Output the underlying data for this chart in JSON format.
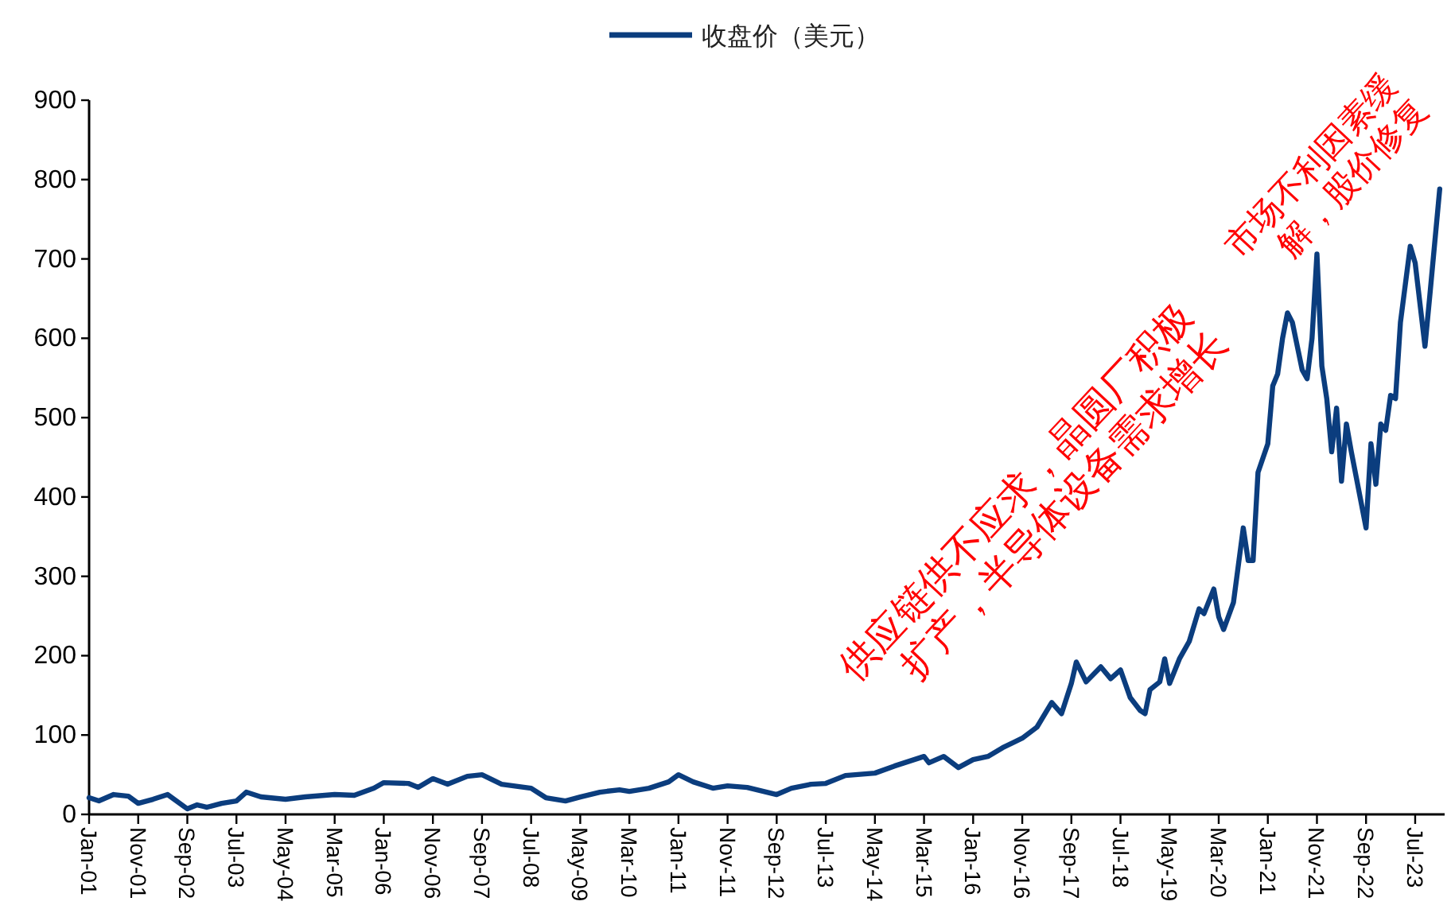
{
  "chart_data": {
    "type": "line",
    "legend": "top",
    "xlim": [
      "2001-01",
      "2024-01"
    ],
    "xticks": [
      {
        "value": "2001-01",
        "label": "Jan-01"
      },
      {
        "value": "2001-11",
        "label": "Nov-01"
      },
      {
        "value": "2002-09",
        "label": "Sep-02"
      },
      {
        "value": "2003-07",
        "label": "Jul-03"
      },
      {
        "value": "2004-05",
        "label": "May-04"
      },
      {
        "value": "2005-03",
        "label": "Mar-05"
      },
      {
        "value": "2006-01",
        "label": "Jan-06"
      },
      {
        "value": "2006-11",
        "label": "Nov-06"
      },
      {
        "value": "2007-09",
        "label": "Sep-07"
      },
      {
        "value": "2008-07",
        "label": "Jul-08"
      },
      {
        "value": "2009-05",
        "label": "May-09"
      },
      {
        "value": "2010-03",
        "label": "Mar-10"
      },
      {
        "value": "2011-01",
        "label": "Jan-11"
      },
      {
        "value": "2011-11",
        "label": "Nov-11"
      },
      {
        "value": "2012-09",
        "label": "Sep-12"
      },
      {
        "value": "2013-07",
        "label": "Jul-13"
      },
      {
        "value": "2014-05",
        "label": "May-14"
      },
      {
        "value": "2015-03",
        "label": "Mar-15"
      },
      {
        "value": "2016-01",
        "label": "Jan-16"
      },
      {
        "value": "2016-11",
        "label": "Nov-16"
      },
      {
        "value": "2017-09",
        "label": "Sep-17"
      },
      {
        "value": "2018-07",
        "label": "Jul-18"
      },
      {
        "value": "2019-05",
        "label": "May-19"
      },
      {
        "value": "2020-03",
        "label": "Mar-20"
      },
      {
        "value": "2021-01",
        "label": "Jan-21"
      },
      {
        "value": "2021-11",
        "label": "Nov-21"
      },
      {
        "value": "2022-09",
        "label": "Sep-22"
      },
      {
        "value": "2023-07",
        "label": "Jul-23"
      }
    ],
    "ylim": [
      0,
      900
    ],
    "yticks": [
      0,
      100,
      200,
      300,
      400,
      500,
      600,
      700,
      800,
      900
    ],
    "annotations": [
      "供应链供不应求，晶圆厂积极扩产，半导体设备需求增长",
      "市场不利因素缓解，股价修复"
    ],
    "series": [
      {
        "name": "收盘价（美元）",
        "color": "#0b3d7e",
        "x": [
          "2001-01",
          "2001-03",
          "2001-06",
          "2001-09",
          "2001-11",
          "2002-02",
          "2002-05",
          "2002-09",
          "2002-11",
          "2003-01",
          "2003-04",
          "2003-07",
          "2003-09",
          "2003-12",
          "2004-05",
          "2004-09",
          "2005-03",
          "2005-07",
          "2005-11",
          "2006-01",
          "2006-06",
          "2006-08",
          "2006-11",
          "2007-02",
          "2007-06",
          "2007-09",
          "2008-01",
          "2008-07",
          "2008-10",
          "2009-02",
          "2009-05",
          "2009-09",
          "2010-01",
          "2010-03",
          "2010-07",
          "2010-11",
          "2011-01",
          "2011-04",
          "2011-08",
          "2011-11",
          "2012-03",
          "2012-09",
          "2012-12",
          "2013-04",
          "2013-07",
          "2013-11",
          "2014-05",
          "2014-09",
          "2015-01",
          "2015-03",
          "2015-04",
          "2015-07",
          "2015-10",
          "2016-01",
          "2016-04",
          "2016-07",
          "2016-11",
          "2017-02",
          "2017-05",
          "2017-07",
          "2017-09",
          "2017-10",
          "2017-12",
          "2018-03",
          "2018-05",
          "2018-07",
          "2018-09",
          "2018-11",
          "2018-12",
          "2019-01",
          "2019-03",
          "2019-04",
          "2019-05",
          "2019-07",
          "2019-09",
          "2019-11",
          "2019-12",
          "2020-02",
          "2020-03",
          "2020-04",
          "2020-06",
          "2020-08",
          "2020-09",
          "2020-10",
          "2020-11",
          "2021-01",
          "2021-02",
          "2021-03",
          "2021-04",
          "2021-05",
          "2021-06",
          "2021-07",
          "2021-08",
          "2021-09",
          "2021-10",
          "2021-11",
          "2021-12",
          "2022-01",
          "2022-02",
          "2022-03",
          "2022-04",
          "2022-05",
          "2022-06",
          "2022-09",
          "2022-10",
          "2022-11",
          "2022-12",
          "2023-01",
          "2023-02",
          "2023-03",
          "2023-04",
          "2023-06",
          "2023-07",
          "2023-09",
          "2023-10",
          "2023-12"
        ],
        "values": [
          21,
          17,
          25,
          23,
          14,
          19,
          25,
          7,
          12,
          9,
          14,
          17,
          28,
          22,
          19,
          22,
          25,
          24,
          33,
          40,
          39,
          34,
          45,
          38,
          48,
          50,
          38,
          33,
          21,
          17,
          22,
          28,
          31,
          29,
          33,
          41,
          50,
          41,
          33,
          36,
          34,
          25,
          33,
          38,
          39,
          49,
          52,
          61,
          69,
          73,
          65,
          73,
          59,
          69,
          73,
          84,
          96,
          110,
          141,
          127,
          165,
          192,
          167,
          186,
          171,
          182,
          147,
          131,
          127,
          157,
          167,
          196,
          165,
          196,
          218,
          259,
          253,
          284,
          249,
          233,
          267,
          361,
          320,
          320,
          431,
          467,
          540,
          555,
          600,
          632,
          620,
          590,
          560,
          549,
          600,
          706,
          565,
          524,
          457,
          512,
          420,
          492,
          457,
          361,
          467,
          416,
          492,
          484,
          528,
          524,
          620,
          716,
          695,
          590,
          655,
          788
        ]
      }
    ]
  }
}
